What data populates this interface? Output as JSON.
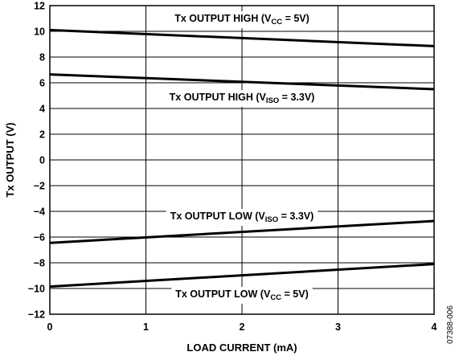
{
  "chart_data": {
    "type": "line",
    "xlabel": "LOAD CURRENT (mA)",
    "ylabel": "Tx OUTPUT (V)",
    "xlim": [
      0,
      4
    ],
    "ylim": [
      -12,
      12
    ],
    "x_ticks": [
      "0",
      "1",
      "2",
      "3",
      "4"
    ],
    "y_ticks": [
      "12",
      "10",
      "8",
      "6",
      "4",
      "2",
      "0",
      "−2",
      "−4",
      "−6",
      "−8",
      "−10",
      "−12"
    ],
    "grid": true,
    "series": [
      {
        "label_main": "Tx OUTPUT HIGH (V",
        "label_sub": "CC",
        "label_tail": " = 5V)",
        "x": [
          0,
          4
        ],
        "y": [
          10.1,
          8.85
        ]
      },
      {
        "label_main": "Tx OUTPUT HIGH (V",
        "label_sub": "ISO",
        "label_tail": " = 3.3V)",
        "x": [
          0,
          4
        ],
        "y": [
          6.65,
          5.5
        ]
      },
      {
        "label_main": "Tx OUTPUT LOW (V",
        "label_sub": "ISO",
        "label_tail": " = 3.3V)",
        "x": [
          0,
          4
        ],
        "y": [
          -6.45,
          -4.75
        ]
      },
      {
        "label_main": "Tx OUTPUT LOW (V",
        "label_sub": "CC",
        "label_tail": " = 5V)",
        "x": [
          0,
          4
        ],
        "y": [
          -9.85,
          -8.1
        ]
      }
    ],
    "figure_id": "07388-006",
    "line_color": "#000000"
  }
}
